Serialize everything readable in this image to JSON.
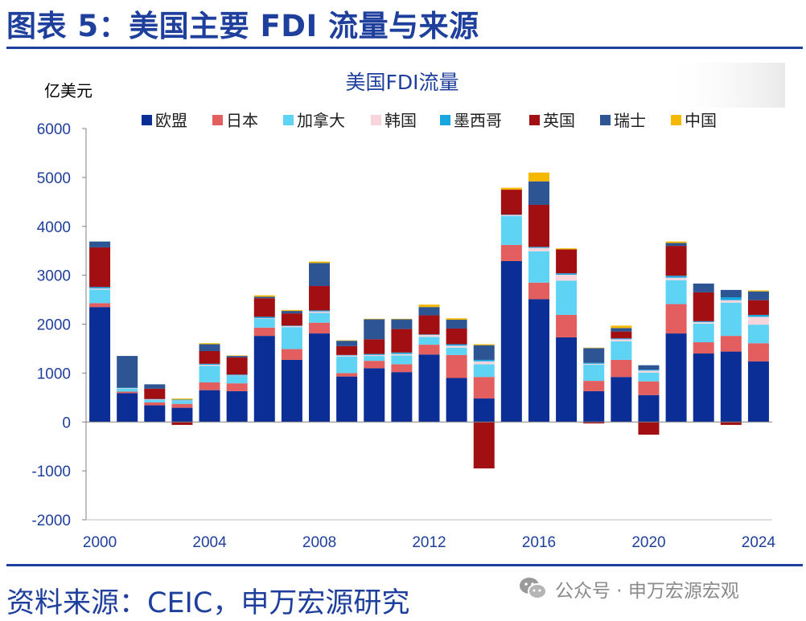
{
  "header": {
    "title": "图表 5：美国主要 FDI 流量与来源"
  },
  "footer": {
    "source": "资料来源：CEIC，申万宏源研究",
    "watermark": "公众号 · 申万宏源宏观"
  },
  "colors": {
    "brand": "#1f3f9c",
    "axis_text": "#1f3f9c",
    "series": [
      "#0a2e96",
      "#e35e5e",
      "#5fd3f4",
      "#f8d4dc",
      "#19a6e0",
      "#a20f12",
      "#2d5594",
      "#f4b800"
    ]
  },
  "chart_data": {
    "type": "stacked-bar",
    "title": "美国FDI流量",
    "ylabel": "亿美元",
    "ylim": [
      -2000,
      6000
    ],
    "yticks": [
      6000,
      5000,
      4000,
      3000,
      2000,
      1000,
      0,
      -1000,
      -2000
    ],
    "xtick_labels": [
      {
        "year": 2000,
        "label": "2000"
      },
      {
        "year": 2004,
        "label": "2004"
      },
      {
        "year": 2008,
        "label": "2008"
      },
      {
        "year": 2012,
        "label": "2012"
      },
      {
        "year": 2016,
        "label": "2016"
      },
      {
        "year": 2020,
        "label": "2020"
      },
      {
        "year": 2024,
        "label": "2024"
      }
    ],
    "legend_position": "top",
    "categories": [
      2000,
      2001,
      2002,
      2003,
      2004,
      2005,
      2006,
      2007,
      2008,
      2009,
      2010,
      2011,
      2012,
      2013,
      2014,
      2015,
      2016,
      2017,
      2018,
      2019,
      2020,
      2021,
      2022,
      2023,
      2024
    ],
    "series": [
      {
        "name": "欧盟",
        "values": [
          2350,
          590,
          340,
          290,
          650,
          630,
          1760,
          1270,
          1810,
          930,
          1100,
          1020,
          1380,
          900,
          480,
          3290,
          2510,
          1730,
          630,
          920,
          550,
          1810,
          1400,
          1440,
          1240
        ]
      },
      {
        "name": "日本",
        "values": [
          80,
          30,
          60,
          80,
          160,
          160,
          170,
          220,
          220,
          70,
          150,
          160,
          200,
          470,
          440,
          330,
          340,
          460,
          210,
          350,
          280,
          600,
          230,
          320,
          370
        ]
      },
      {
        "name": "加拿大",
        "values": [
          280,
          60,
          50,
          60,
          340,
          150,
          180,
          450,
          200,
          340,
          100,
          180,
          160,
          150,
          260,
          590,
          640,
          700,
          330,
          380,
          180,
          490,
          380,
          680,
          380
        ]
      },
      {
        "name": "韩国",
        "values": [
          20,
          10,
          10,
          10,
          20,
          10,
          10,
          20,
          30,
          20,
          20,
          30,
          40,
          40,
          60,
          20,
          70,
          120,
          20,
          40,
          40,
          50,
          30,
          50,
          160
        ]
      },
      {
        "name": "墨西哥",
        "values": [
          30,
          10,
          10,
          20,
          20,
          20,
          30,
          10,
          20,
          10,
          20,
          30,
          10,
          30,
          30,
          10,
          20,
          30,
          20,
          20,
          20,
          40,
          20,
          60,
          40
        ]
      },
      {
        "name": "英国",
        "values": [
          810,
          0,
          210,
          -60,
          260,
          350,
          380,
          250,
          500,
          180,
          300,
          480,
          390,
          320,
          -950,
          510,
          860,
          490,
          -30,
          140,
          -260,
          610,
          590,
          -60,
          300
        ]
      },
      {
        "name": "瑞士",
        "values": [
          120,
          650,
          90,
          0,
          140,
          30,
          30,
          50,
          470,
          110,
          410,
          200,
          170,
          180,
          300,
          0,
          480,
          0,
          300,
          70,
          90,
          60,
          180,
          150,
          180
        ]
      },
      {
        "name": "中国",
        "values": [
          0,
          0,
          0,
          20,
          20,
          10,
          30,
          20,
          30,
          10,
          10,
          10,
          50,
          30,
          20,
          40,
          180,
          20,
          10,
          50,
          0,
          30,
          0,
          0,
          20
        ]
      }
    ]
  }
}
